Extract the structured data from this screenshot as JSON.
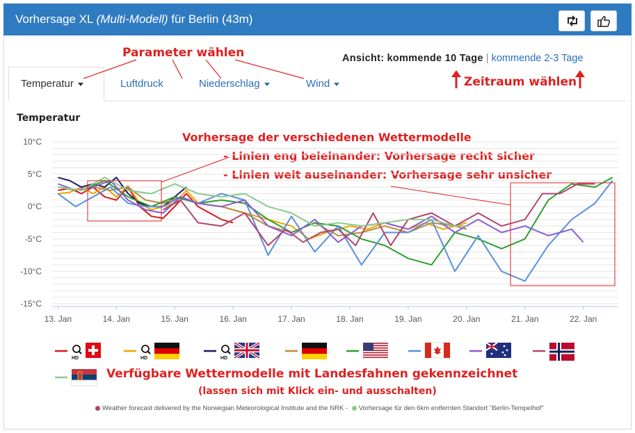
{
  "header": {
    "title_prefix": "Vorhersage XL",
    "title_model": "(Multi-Modell)",
    "title_suffix": "für Berlin (43m)",
    "retweet_icon": "retweet-icon",
    "like_icon": "thumbs-up-icon",
    "background": "#2f7bc1"
  },
  "tabs": [
    {
      "label": "Temperatur",
      "active": true,
      "dropdown": true
    },
    {
      "label": "Luftdruck",
      "active": false,
      "dropdown": false
    },
    {
      "label": "Niederschlag",
      "active": false,
      "dropdown": true
    },
    {
      "label": "Wind",
      "active": false,
      "dropdown": true
    }
  ],
  "view": {
    "prefix": "Ansicht:",
    "active": "kommende 10 Tage",
    "separator": "|",
    "alternative": "kommende 2-3 Tage"
  },
  "annotations": {
    "parameter": "Parameter wählen",
    "period": "Zeitraum wählen",
    "models_title": "Vorhersage der verschiedenen Wettermodelle",
    "models_line1": "- Linien eng beieinander: Vorhersage recht sicher",
    "models_line2": "- Linien weit auseinander: Vorhersage sehr unsicher",
    "legend_title": "Verfügbare Wettermodelle mit Landesfahnen gekennzeichnet",
    "legend_sub": "(lassen sich mit Klick ein- und ausschalten)",
    "color": "#e02020"
  },
  "footnote": {
    "norway": "Weather forecast delivered by the Norwegian Meteorological Institute and the NRK -",
    "tempelhof": "Vorhersage für den 6km entfernten Standort \"Berlin-Tempelhof\""
  },
  "chart_data": {
    "type": "line",
    "title": "Temperatur",
    "ylim": [
      -15,
      10
    ],
    "yticks": [
      "10°C",
      "5°C",
      "0°C",
      "-5°C",
      "-10°C",
      "-15°C"
    ],
    "ytick_values": [
      10,
      5,
      0,
      -5,
      -10,
      -15
    ],
    "xticks": [
      "13. Jan",
      "14. Jan",
      "15. Jan",
      "16. Jan",
      "17. Jan",
      "18. Jan",
      "19. Jan",
      "20. Jan",
      "21. Jan",
      "22. Jan"
    ],
    "xlim": [
      -0.1,
      9.6
    ],
    "grid": true,
    "series": [
      {
        "name": "Schweiz HD",
        "flag": "switzerland",
        "hd": true,
        "color": "#d7191c",
        "x": [
          0,
          0.2,
          0.4,
          0.6,
          0.8,
          1.0,
          1.2,
          1.4,
          1.6,
          1.8,
          2.0,
          2.2,
          2.4,
          2.6,
          2.8,
          3.0
        ],
        "y": [
          2.5,
          2.8,
          2,
          3,
          1.5,
          1,
          3,
          0,
          -1.5,
          -1.8,
          0,
          2,
          0,
          -1,
          -2,
          -2.5
        ]
      },
      {
        "name": "Deutschland HD",
        "flag": "germany",
        "hd": true,
        "color": "#f0a500",
        "x": [
          0,
          0.2,
          0.4,
          0.6,
          0.8,
          1.0,
          1.2,
          1.4,
          1.6,
          1.8,
          2.0,
          2.2,
          2.4,
          2.8,
          3.2,
          3.6,
          4.0,
          4.3,
          4.6,
          5.0,
          5.3,
          5.6,
          6.0,
          6.3,
          6.6,
          7.0
        ],
        "y": [
          2,
          2.2,
          3,
          2,
          3,
          1.5,
          3.2,
          0.5,
          -0.5,
          0,
          0.5,
          2.5,
          0.5,
          0,
          -1,
          -2,
          -3,
          -5,
          -4,
          -3,
          -3.5,
          -2.5,
          -3.5,
          -2.5,
          -3.5,
          -2.5
        ]
      },
      {
        "name": "UK HD",
        "flag": "uk",
        "hd": true,
        "color": "#1a1a5e",
        "x": [
          0,
          0.2,
          0.4,
          0.6,
          0.8,
          1.0,
          1.2,
          1.4,
          1.6,
          1.8,
          2.0,
          2.2
        ],
        "y": [
          4.5,
          4,
          3,
          3.5,
          3,
          4.5,
          2,
          0.5,
          0,
          0,
          1.5,
          3
        ]
      },
      {
        "name": "Deutschland",
        "flag": "germany",
        "hd": false,
        "color": "#b88a3e",
        "x": [
          0,
          0.3,
          0.6,
          0.9,
          1.2,
          1.5,
          1.8,
          2.1,
          2.4,
          2.8,
          3.2,
          3.6,
          4.0,
          4.4,
          4.8,
          5.2,
          5.6,
          6.0,
          6.4,
          6.8,
          7.0
        ],
        "y": [
          3,
          2.5,
          3,
          2.5,
          3,
          1,
          0.5,
          1.5,
          0.5,
          0,
          -1,
          -3,
          -4,
          -2.5,
          -4.5,
          -4,
          -3,
          -4,
          -2.5,
          -3,
          -3.5
        ]
      },
      {
        "name": "USA",
        "flag": "usa",
        "hd": false,
        "color": "#2ca02c",
        "x": [
          0,
          0.4,
          0.8,
          1.2,
          1.6,
          2.0,
          2.4,
          2.8,
          3.2,
          3.6,
          4.0,
          4.4,
          4.8,
          5.2,
          5.6,
          6.0,
          6.4,
          6.8,
          7.2,
          7.6,
          8.0,
          8.4,
          8.8,
          9.2,
          9.5
        ],
        "y": [
          3,
          2.5,
          4,
          1.5,
          0,
          1.5,
          0.5,
          1,
          0.5,
          -2,
          -4,
          -2.5,
          -3,
          -5,
          -6,
          -8,
          -9,
          -4,
          -5,
          -6.5,
          -5,
          1,
          3.5,
          3,
          4.5
        ]
      },
      {
        "name": "Kanada",
        "flag": "canada",
        "hd": false,
        "color": "#5b8fd9",
        "x": [
          0,
          0.3,
          0.6,
          0.9,
          1.2,
          1.5,
          1.8,
          2.1,
          2.4,
          2.8,
          3.2,
          3.6,
          4.0,
          4.4,
          4.8,
          5.2,
          5.6,
          6.0,
          6.4,
          6.8,
          7.2,
          7.6,
          8.0,
          8.4,
          8.8,
          9.2,
          9.5
        ],
        "y": [
          2,
          0,
          1.5,
          3,
          0.5,
          0,
          0,
          1.5,
          0.5,
          2,
          1,
          -7.5,
          -1.5,
          -7,
          -3,
          -9,
          -4,
          -4,
          -2,
          -10,
          -4.5,
          -10,
          -11.5,
          -6,
          -2,
          0.5,
          4
        ]
      },
      {
        "name": "Australien",
        "flag": "australia",
        "hd": false,
        "color": "#8a5cd6",
        "x": [
          0,
          0.3,
          0.6,
          0.9,
          1.2,
          1.5,
          1.8,
          2.1,
          2.4,
          2.8,
          3.2,
          3.6,
          4.0,
          4.4,
          4.8,
          5.2,
          5.6,
          6.0,
          6.4,
          6.8,
          7.2,
          7.6,
          8.0,
          8.4,
          8.8,
          9.0
        ],
        "y": [
          3.5,
          2.5,
          3,
          4,
          1,
          -0.5,
          -1,
          1.5,
          0.5,
          0,
          1,
          -3,
          -4.5,
          -2,
          -5.5,
          -3,
          -2.5,
          -3.5,
          -1.5,
          -4,
          -2,
          -4,
          -3,
          -4.5,
          -3.5,
          -5.5
        ]
      },
      {
        "name": "Norwegen",
        "flag": "norway",
        "hd": false,
        "color": "#b2446e",
        "x": [
          1.8,
          2.1,
          2.4,
          2.8,
          3.2,
          3.6,
          3.9,
          4.2,
          4.5,
          4.8,
          5.1,
          5.4,
          5.7,
          6.0,
          6.4,
          6.8,
          7.2,
          7.6,
          8.0,
          8.3,
          8.6,
          8.9,
          9.2
        ],
        "y": [
          -0.5,
          1,
          -2.5,
          -3,
          -1,
          -6,
          -3.5,
          -5.5,
          -4,
          -3.5,
          -6,
          -1,
          -6,
          -2,
          -1,
          -3,
          -1,
          -3,
          -2,
          2,
          2,
          3.5,
          3.5
        ]
      },
      {
        "name": "Serbien",
        "flag": "serbia",
        "hd": false,
        "color": "#8cc98c",
        "x": [
          0,
          0.4,
          0.8,
          1.2,
          1.6,
          2.0,
          2.4,
          2.8,
          3.2,
          3.6,
          4.0,
          4.4,
          4.8,
          5.2,
          5.6,
          6.0,
          6.4,
          6.8,
          7.0
        ],
        "y": [
          3,
          2.5,
          4.5,
          2.5,
          2,
          3.5,
          2,
          1.5,
          2,
          0,
          -1,
          -3,
          -2.5,
          -3,
          -2.5,
          -2,
          -2,
          -3,
          -3
        ]
      }
    ]
  }
}
